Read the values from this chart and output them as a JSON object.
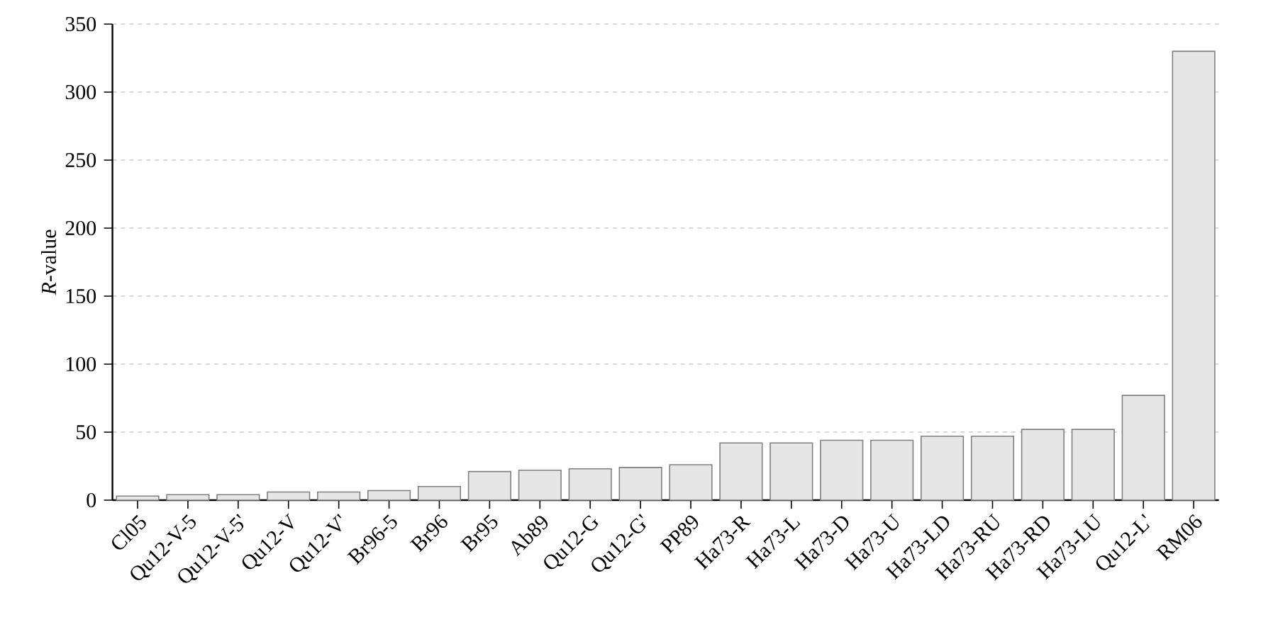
{
  "chart_data": {
    "type": "bar",
    "ylabel": "*R*-value",
    "categories": [
      "Cl05",
      "Qu12-V-5",
      "Qu12-V-5'",
      "Qu12-V",
      "Qu12-V'",
      "Br96-5",
      "Br96",
      "Br95",
      "Ab89",
      "Qu12-G",
      "Qu12-G'",
      "PP89",
      "Ha73-R",
      "Ha73-L",
      "Ha73-D",
      "Ha73-U",
      "Ha73-LD",
      "Ha73-RU",
      "Ha73-RD",
      "Ha73-LU",
      "Qu12-L'",
      "RM06"
    ],
    "values": [
      3,
      4,
      4,
      6,
      6,
      7,
      10,
      21,
      22,
      23,
      24,
      26,
      42,
      42,
      44,
      44,
      47,
      47,
      52,
      52,
      77,
      330
    ],
    "color": "#e6e6e6",
    "ylim": [
      0,
      350
    ],
    "yticks": [
      0,
      50,
      100,
      150,
      200,
      250,
      300,
      350
    ],
    "grid": "y"
  }
}
